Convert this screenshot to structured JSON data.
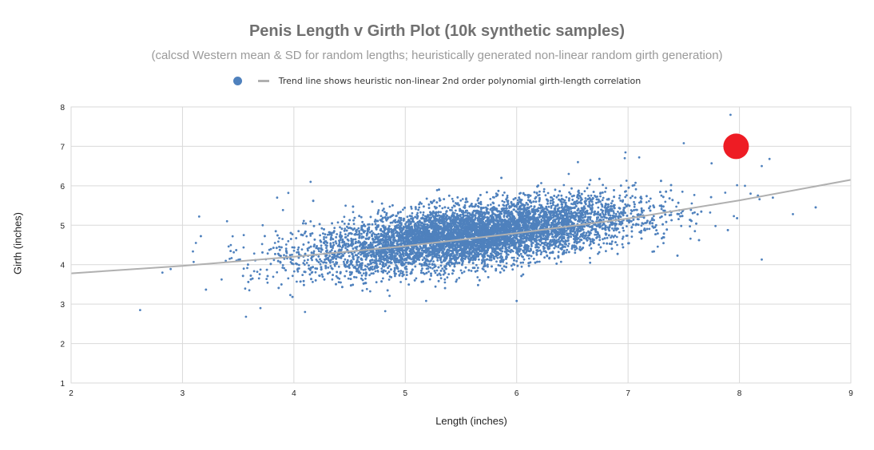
{
  "chart_data": {
    "type": "scatter",
    "title": "Penis Length v Girth Plot (10k synthetic samples)",
    "subtitle": "(calcsd Western mean & SD for random lengths; heuristically generated non-linear random girth generation)",
    "legend": {
      "placement": "top",
      "entries": [
        {
          "marker": "dot",
          "color": "#4f81bd",
          "label": ""
        },
        {
          "marker": "line",
          "color": "#b0b0b0",
          "label": "Trend line shows heuristic non-linear 2nd order polynomial girth-length correlation"
        }
      ]
    },
    "xlabel": "Length (inches)",
    "ylabel": "Girth (inches)",
    "xlim": [
      2,
      9
    ],
    "ylim": [
      1,
      8
    ],
    "xticks": [
      "2",
      "3",
      "4",
      "5",
      "6",
      "7",
      "8",
      "9"
    ],
    "yticks": [
      "1",
      "2",
      "3",
      "4",
      "5",
      "6",
      "7",
      "8"
    ],
    "grid": true,
    "series": [
      {
        "marker_color": "#4f81bd",
        "distribution": {
          "n": 10000,
          "x_mean": 5.6,
          "x_sd": 0.72,
          "y_base": 4.75,
          "y_slope": 0.34,
          "y_sd": 0.38
        },
        "outliers": [
          [
            2.62,
            2.85
          ],
          [
            2.82,
            3.8
          ],
          [
            3.12,
            4.55
          ],
          [
            3.1,
            4.07
          ],
          [
            3.15,
            5.22
          ],
          [
            3.4,
            5.1
          ],
          [
            3.45,
            4.72
          ],
          [
            3.55,
            4.75
          ],
          [
            3.6,
            3.35
          ],
          [
            3.55,
            3.9
          ],
          [
            3.7,
            2.9
          ],
          [
            3.57,
            2.68
          ],
          [
            3.72,
            5.0
          ],
          [
            3.85,
            5.7
          ],
          [
            3.95,
            5.82
          ],
          [
            4.15,
            6.1
          ],
          [
            4.1,
            2.8
          ],
          [
            4.82,
            2.82
          ],
          [
            6.0,
            3.08
          ],
          [
            6.55,
            6.6
          ],
          [
            6.97,
            6.7
          ],
          [
            7.1,
            6.72
          ],
          [
            7.5,
            7.08
          ],
          [
            7.88,
            6.85
          ],
          [
            7.92,
            7.8
          ],
          [
            7.95,
            5.23
          ],
          [
            8.05,
            6.0
          ],
          [
            8.1,
            5.8
          ],
          [
            8.2,
            6.5
          ],
          [
            8.2,
            4.13
          ],
          [
            8.27,
            6.68
          ],
          [
            8.3,
            5.7
          ],
          [
            8.48,
            5.28
          ],
          [
            7.75,
            6.57
          ],
          [
            7.6,
            4.85
          ]
        ]
      },
      {
        "name": "Trend line",
        "type": "line",
        "color": "#b0b0b0",
        "x": [
          2,
          3,
          4,
          5,
          6,
          7,
          8,
          9
        ],
        "y": [
          3.78,
          3.97,
          4.2,
          4.47,
          4.8,
          5.17,
          5.63,
          6.15
        ]
      },
      {
        "type": "highlight",
        "color": "#ee1c24",
        "points": [
          [
            7.97,
            7.0
          ]
        ]
      }
    ]
  }
}
